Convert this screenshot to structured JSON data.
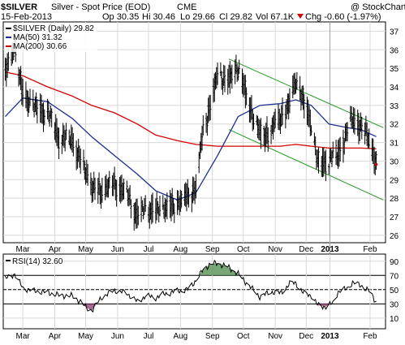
{
  "header": {
    "symbol": "$SILVER",
    "name": "Silver - Spot Price (EOD)",
    "exchange": "CME",
    "date": "15-Feb-2013",
    "open": "Op 30.35",
    "high": "Hi 30.46",
    "low": "Lo 29.66",
    "close": "Cl 29.82",
    "volume": "Vol 67.1K",
    "change": "Chg -0.60 (-1.97%)",
    "change_icon": "down-triangle-icon",
    "watermark": "@ StockCharts.com"
  },
  "legend": {
    "price": "$SILVER (Daily) 29.82",
    "ma50": "MA(50) 31.32",
    "ma200": "MA(200) 30.66",
    "rsi": "RSI(14) 32.60"
  },
  "colors": {
    "price": "#000000",
    "ma50": "#1f2f8f",
    "ma200": "#d40000",
    "channel": "#1f9a1f",
    "rsi_fill_overbought": "#4a8a4a",
    "rsi_fill_oversold": "#8a3a6a",
    "grid": "#d8d8d8",
    "cursor": "#9aa0aa"
  },
  "chart_data": [
    {
      "type": "line",
      "panel": "price",
      "title": "$SILVER (Daily) 29.82",
      "series_type": "ohlc",
      "ylim": [
        25.6,
        37.5
      ],
      "y_ticks": [
        26,
        27,
        28,
        29,
        30,
        31,
        32,
        33,
        34,
        35,
        36,
        37
      ],
      "x_tick_labels": [
        "Mar",
        "Apr",
        "May",
        "Jun",
        "Jul",
        "Aug",
        "Sep",
        "Oct",
        "Nov",
        "Dec",
        "2013",
        "Feb"
      ],
      "grid": true,
      "legend": "top-left",
      "series": [
        {
          "name": "$SILVER (Daily) 29.82",
          "x": [
            "2012-02-21",
            "2012-03-01",
            "2012-03-09",
            "2012-03-21",
            "2012-04-02",
            "2012-04-13",
            "2012-04-26",
            "2012-05-04",
            "2012-05-15",
            "2012-05-25",
            "2012-06-06",
            "2012-06-18",
            "2012-06-28",
            "2012-07-06",
            "2012-07-16",
            "2012-07-27",
            "2012-08-06",
            "2012-08-16",
            "2012-08-24",
            "2012-08-31",
            "2012-09-07",
            "2012-09-14",
            "2012-09-24",
            "2012-10-04",
            "2012-10-15",
            "2012-10-25",
            "2012-11-05",
            "2012-11-14",
            "2012-11-23",
            "2012-11-29",
            "2012-12-06",
            "2012-12-14",
            "2012-12-20",
            "2012-12-31",
            "2013-01-09",
            "2013-01-18",
            "2013-01-23",
            "2013-01-31",
            "2013-02-08",
            "2013-02-15"
          ],
          "values": [
            34.7,
            36.2,
            33.6,
            32.9,
            32.6,
            31.3,
            31.1,
            30.1,
            28.6,
            28.4,
            28.8,
            28.2,
            27.1,
            27.4,
            27.4,
            27.5,
            27.7,
            28.1,
            28.6,
            31.6,
            33.1,
            34.6,
            34.4,
            35.0,
            33.0,
            31.4,
            31.6,
            32.4,
            33.1,
            34.4,
            33.3,
            32.0,
            29.9,
            30.0,
            30.4,
            31.6,
            32.3,
            31.9,
            31.2,
            29.82
          ]
        },
        {
          "name": "MA(50) 31.32",
          "x": [
            "2012-02-21",
            "2012-03-09",
            "2012-04-02",
            "2012-04-26",
            "2012-05-15",
            "2012-06-06",
            "2012-06-28",
            "2012-07-16",
            "2012-08-06",
            "2012-08-24",
            "2012-09-14",
            "2012-10-04",
            "2012-10-25",
            "2012-11-14",
            "2012-11-29",
            "2012-12-14",
            "2012-12-31",
            "2013-01-18",
            "2013-01-31",
            "2013-02-15"
          ],
          "values": [
            32.4,
            33.4,
            33.2,
            32.3,
            31.3,
            30.3,
            29.3,
            28.4,
            27.9,
            28.3,
            30.3,
            32.4,
            33.0,
            33.1,
            33.3,
            33.0,
            32.0,
            31.8,
            31.7,
            31.32
          ]
        },
        {
          "name": "MA(200) 30.66",
          "x": [
            "2012-02-21",
            "2012-03-09",
            "2012-04-02",
            "2012-04-26",
            "2012-05-15",
            "2012-06-06",
            "2012-06-28",
            "2012-07-16",
            "2012-08-06",
            "2012-08-24",
            "2012-09-14",
            "2012-10-04",
            "2012-10-25",
            "2012-11-14",
            "2012-11-29",
            "2012-12-14",
            "2012-12-31",
            "2013-01-18",
            "2013-01-31",
            "2013-02-15"
          ],
          "values": [
            34.8,
            34.6,
            34.0,
            33.5,
            33.0,
            32.6,
            32.0,
            31.4,
            31.1,
            30.9,
            30.8,
            30.8,
            30.8,
            30.8,
            30.9,
            30.8,
            30.7,
            30.7,
            30.7,
            30.66
          ]
        },
        {
          "name": "Channel upper",
          "x": [
            "2012-09-25",
            "2013-02-22"
          ],
          "values": [
            35.5,
            31.8
          ]
        },
        {
          "name": "Channel lower",
          "x": [
            "2012-09-25",
            "2013-02-22"
          ],
          "values": [
            31.7,
            27.9
          ]
        }
      ]
    },
    {
      "type": "line",
      "panel": "rsi",
      "title": "RSI(14) 32.60",
      "ylim": [
        -5,
        100
      ],
      "y_ticks": [
        10,
        30,
        50,
        70,
        90
      ],
      "reference_lines": [
        30,
        50,
        70
      ],
      "x_tick_labels": [
        "Mar",
        "Apr",
        "May",
        "Jun",
        "Jul",
        "Aug",
        "Sep",
        "Oct",
        "Nov",
        "Dec",
        "2013",
        "Feb"
      ],
      "grid": true,
      "series": [
        {
          "name": "RSI(14) 32.60",
          "x": [
            "2012-02-21",
            "2012-03-01",
            "2012-03-09",
            "2012-03-21",
            "2012-04-02",
            "2012-04-13",
            "2012-04-26",
            "2012-05-04",
            "2012-05-10",
            "2012-05-15",
            "2012-05-25",
            "2012-06-06",
            "2012-06-18",
            "2012-06-28",
            "2012-07-06",
            "2012-07-16",
            "2012-07-27",
            "2012-08-06",
            "2012-08-16",
            "2012-08-24",
            "2012-08-31",
            "2012-09-07",
            "2012-09-14",
            "2012-09-24",
            "2012-10-04",
            "2012-10-15",
            "2012-10-25",
            "2012-11-05",
            "2012-11-14",
            "2012-11-23",
            "2012-11-29",
            "2012-12-06",
            "2012-12-14",
            "2012-12-20",
            "2012-12-28",
            "2013-01-04",
            "2013-01-09",
            "2013-01-18",
            "2013-01-23",
            "2013-01-31",
            "2013-02-08",
            "2013-02-15"
          ],
          "values": [
            65,
            72,
            52,
            48,
            46,
            42,
            41,
            33,
            24,
            21,
            40,
            49,
            45,
            33,
            41,
            39,
            45,
            48,
            50,
            63,
            78,
            86,
            87,
            82,
            72,
            55,
            40,
            47,
            45,
            58,
            60,
            45,
            42,
            28,
            26,
            31,
            47,
            52,
            60,
            56,
            48,
            32.6
          ]
        }
      ]
    }
  ]
}
